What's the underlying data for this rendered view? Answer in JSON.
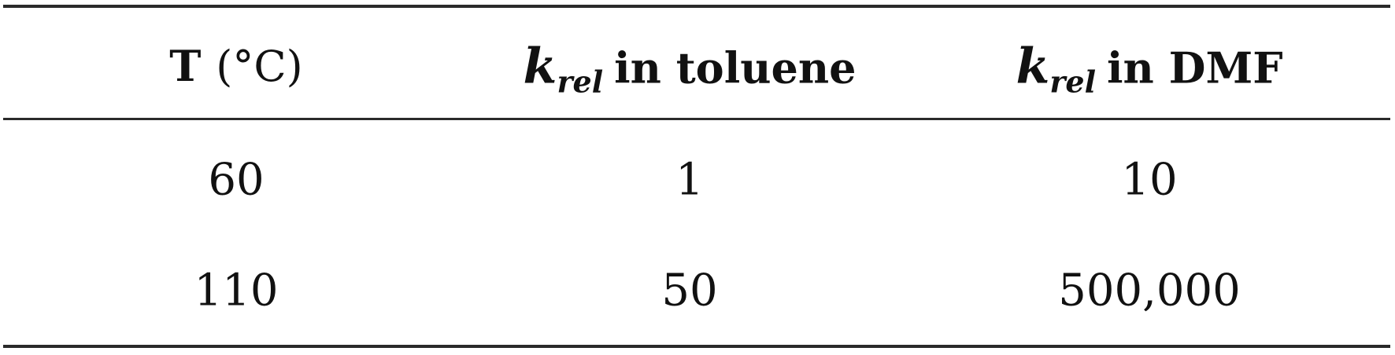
{
  "table": {
    "headers": [
      {
        "main": "T",
        "unit": "(°C)"
      },
      {
        "symbol": "k",
        "subscript": "rel",
        "text": "in toluene"
      },
      {
        "symbol": "k",
        "subscript": "rel",
        "text": "in DMF"
      }
    ],
    "rows": [
      [
        "60",
        "1",
        "10"
      ],
      [
        "110",
        "50",
        "500,000"
      ]
    ]
  }
}
